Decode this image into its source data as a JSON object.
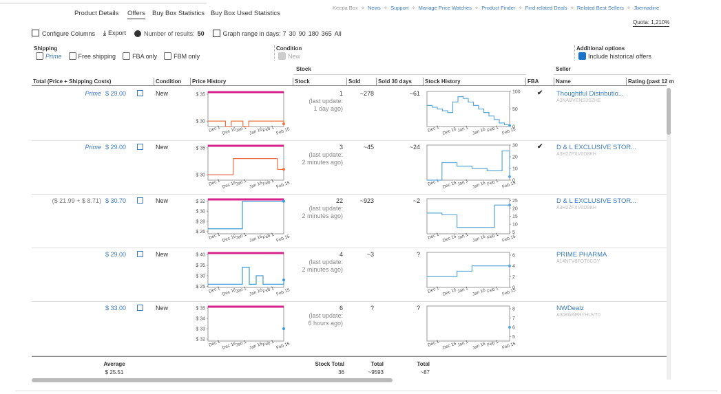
{
  "top_nav": [
    "Keepa Box",
    "News",
    "Support",
    "Manage Price Watches",
    "Product Finder",
    "Find related Deals",
    "Related Best Sellers",
    "Jbernadine"
  ],
  "tabs": [
    "Product Details",
    "Offers",
    "Buy Box Statistics",
    "Buy Box Used Statistics"
  ],
  "quota": "Quota: 1,210%",
  "toolbar": {
    "configure": "Configure Columns",
    "export": "Export",
    "results_label": "Number of results:",
    "results": "50",
    "graph_range_label": "Graph range in days:",
    "graph_ranges": [
      "7",
      "30",
      "90",
      "180",
      "365",
      "All"
    ]
  },
  "filters": {
    "shipping_title": "Shipping",
    "prime": "Prime",
    "free_shipping": "Free shipping",
    "fba_only": "FBA only",
    "fbm_only": "FBM only",
    "condition_title": "Condition",
    "condition_new": "New",
    "additional_title": "Additional options",
    "include_historical": "Include historical offers"
  },
  "group_headers": {
    "stock": "Stock",
    "seller": "Seller"
  },
  "columns": [
    "Total (Price + Shipping Costs)",
    "Condition",
    "Price History",
    "Stock",
    "Sold",
    "Sold 30 days",
    "Stock History",
    "FBA",
    "Name",
    "Rating (past 12 m"
  ],
  "date_labels": [
    "Dec 1",
    "Dec 16",
    "Jan 1",
    "Jan 16",
    "Feb 1",
    "Feb 15"
  ],
  "rows": [
    {
      "prime": "Prime",
      "total": "$ 29.00",
      "condition": "New",
      "price_color": "#e8734a",
      "price_ylim": [
        29,
        35.5
      ],
      "price_ticks": [
        {
          "value": 35,
          "label": "$ 35"
        },
        {
          "value": 30,
          "label": "$ 30"
        }
      ],
      "price_values": [
        30,
        30,
        30,
        29,
        30,
        30,
        29,
        30,
        30,
        30,
        30,
        30,
        30,
        29.5
      ],
      "stock": 1,
      "stock_note": [
        "(last update:",
        "1 day ago)"
      ],
      "sold": "~278",
      "sold30": "~61",
      "stock_ylim": [
        0,
        100
      ],
      "stock_ticks": [
        100,
        50,
        0
      ],
      "stock_values": [
        60,
        55,
        50,
        45,
        40,
        70,
        85,
        80,
        70,
        60,
        50,
        40,
        30,
        20,
        10,
        5,
        3
      ],
      "fba": true,
      "seller": "Thoughtful Distributio...",
      "seller_id": "A3NABVENS3SZHE"
    },
    {
      "prime": "Prime",
      "total": "$ 29.00",
      "condition": "New",
      "price_color": "#e8734a",
      "price_ylim": [
        29,
        35.5
      ],
      "price_ticks": [
        {
          "value": 35,
          "label": "$ 35"
        },
        {
          "value": 30,
          "label": "$ 30"
        }
      ],
      "price_values": [
        30,
        30,
        30,
        30,
        33,
        33,
        33,
        33,
        33,
        33,
        33,
        31,
        31
      ],
      "stock": 3,
      "stock_note": [
        "(last update:",
        "2 minutes ago)"
      ],
      "sold": "~45",
      "sold30": "~24",
      "stock_ylim": [
        0,
        30
      ],
      "stock_ticks": [
        30,
        20,
        10,
        0
      ],
      "stock_values": [
        0,
        0,
        15,
        15,
        12,
        12,
        10,
        10,
        8,
        8,
        25,
        3
      ],
      "fba": true,
      "seller": "D & L EXCLUSIVE STOR...",
      "seller_id": "A3H2ZFXV0D8KH"
    },
    {
      "breakdown": "($ 21.99 + $ 8.71)",
      "total": "$ 30.70",
      "condition": "New",
      "price_color": "#3a9ad9",
      "price_ylim": [
        25.5,
        32.5
      ],
      "price_ticks": [
        {
          "value": 32,
          "label": "$ 32"
        },
        {
          "value": 30,
          "label": "$ 30"
        },
        {
          "value": 28,
          "label": "$ 28"
        },
        {
          "value": 26,
          "label": "$ 26"
        }
      ],
      "price_values": [
        26.5,
        26.5,
        26.5,
        26.5,
        26.5,
        32,
        32,
        32,
        32,
        32,
        32,
        32
      ],
      "stock": 22,
      "stock_note": [
        "(last update:",
        "2 minutes ago)"
      ],
      "sold": "~923",
      "sold30": "~2",
      "stock_ylim": [
        4,
        26
      ],
      "stock_ticks": [
        25,
        20,
        15,
        10,
        5
      ],
      "stock_values": [
        17,
        17,
        16,
        16,
        8,
        8,
        8,
        8,
        8,
        22,
        22,
        22
      ],
      "seller": "D & L EXCLUSIVE STOR...",
      "seller_id": "A3H2ZFXV0D8KH"
    },
    {
      "total": "$ 29.00",
      "condition": "New",
      "price_color": "#3a9ad9",
      "price_ylim": [
        24.5,
        41
      ],
      "price_ticks": [
        {
          "value": 40,
          "label": "$ 40"
        },
        {
          "value": 35,
          "label": "$ 35"
        },
        {
          "value": 30,
          "label": "$ 30"
        },
        {
          "value": 25,
          "label": "$ 25"
        }
      ],
      "price_values": [
        26,
        26,
        26,
        26,
        26,
        34,
        26,
        30,
        26,
        26,
        26,
        28
      ],
      "stock": 4,
      "stock_note": [
        "(last update:",
        "2 minutes ago)"
      ],
      "sold": "~3",
      "sold30": "?",
      "stock_ylim": [
        0,
        6.5
      ],
      "stock_ticks": [
        6,
        4,
        2,
        0
      ],
      "stock_values": [
        2,
        2,
        2,
        2,
        3,
        3,
        4,
        4,
        4,
        4,
        4,
        4
      ],
      "seller": "PRIME PHARMA",
      "seller_id": "A14NTV8FOT6CGY"
    },
    {
      "total": "$ 33.00",
      "condition": "New",
      "price_color": "#3a9ad9",
      "price_ylim": [
        31.8,
        35.2
      ],
      "price_ticks": [
        {
          "value": 35,
          "label": "$ 35"
        },
        {
          "value": 34,
          "label": "$ 34"
        },
        {
          "value": 33,
          "label": "$ 33"
        },
        {
          "value": 32,
          "label": "$ 32"
        }
      ],
      "price_values": [
        null,
        null,
        null,
        null,
        null,
        null,
        null,
        null,
        null,
        null,
        null,
        33
      ],
      "stock": 6,
      "stock_note": [
        "(last update:",
        "6 hours ago)"
      ],
      "sold": "?",
      "sold30": "?",
      "stock_ylim": [
        4.5,
        8.3
      ],
      "stock_ticks": [
        8,
        7,
        6,
        5
      ],
      "stock_values": [
        null,
        null,
        null,
        null,
        null,
        null,
        null,
        null,
        null,
        null,
        null,
        6
      ],
      "seller": "NWDealz",
      "seller_id": "A308W6ERYHUVT0"
    }
  ],
  "footer": {
    "average_label": "Average",
    "average": "$ 25.51",
    "stock_total_label": "Stock Total",
    "stock_total": 36,
    "sold_total_label": "Total",
    "sold_total": "~9593",
    "sold30_total_label": "Total",
    "sold30_total": "~87"
  }
}
